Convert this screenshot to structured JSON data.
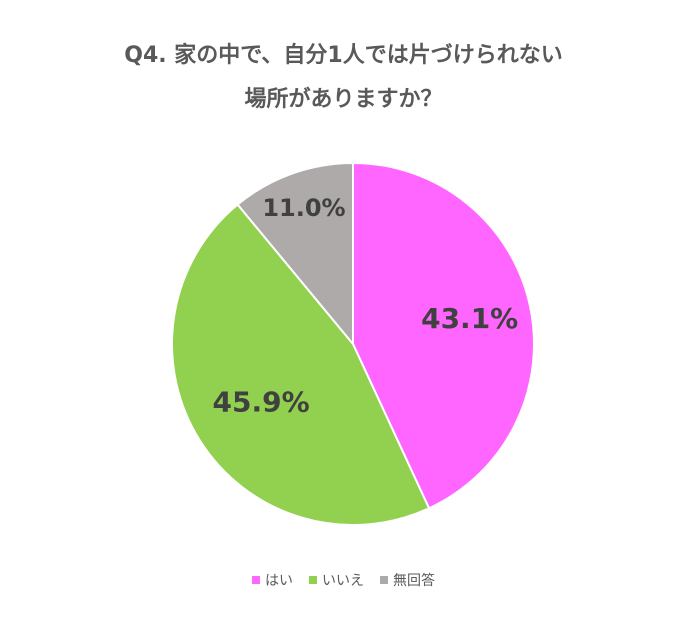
{
  "chart_data": {
    "type": "pie",
    "title_lines": [
      "Q4.  家の中で、自分1人では片づけられない",
      "場所がありますか？"
    ],
    "categories": [
      "はい",
      "いいえ",
      "無回答"
    ],
    "values": [
      43.1,
      45.9,
      11.0
    ],
    "data_labels": [
      "43.1%",
      "45.9%",
      "11.0%"
    ],
    "colors": [
      "#ff66ff",
      "#92d050",
      "#aeaaaa"
    ],
    "legend_position": "bottom"
  }
}
